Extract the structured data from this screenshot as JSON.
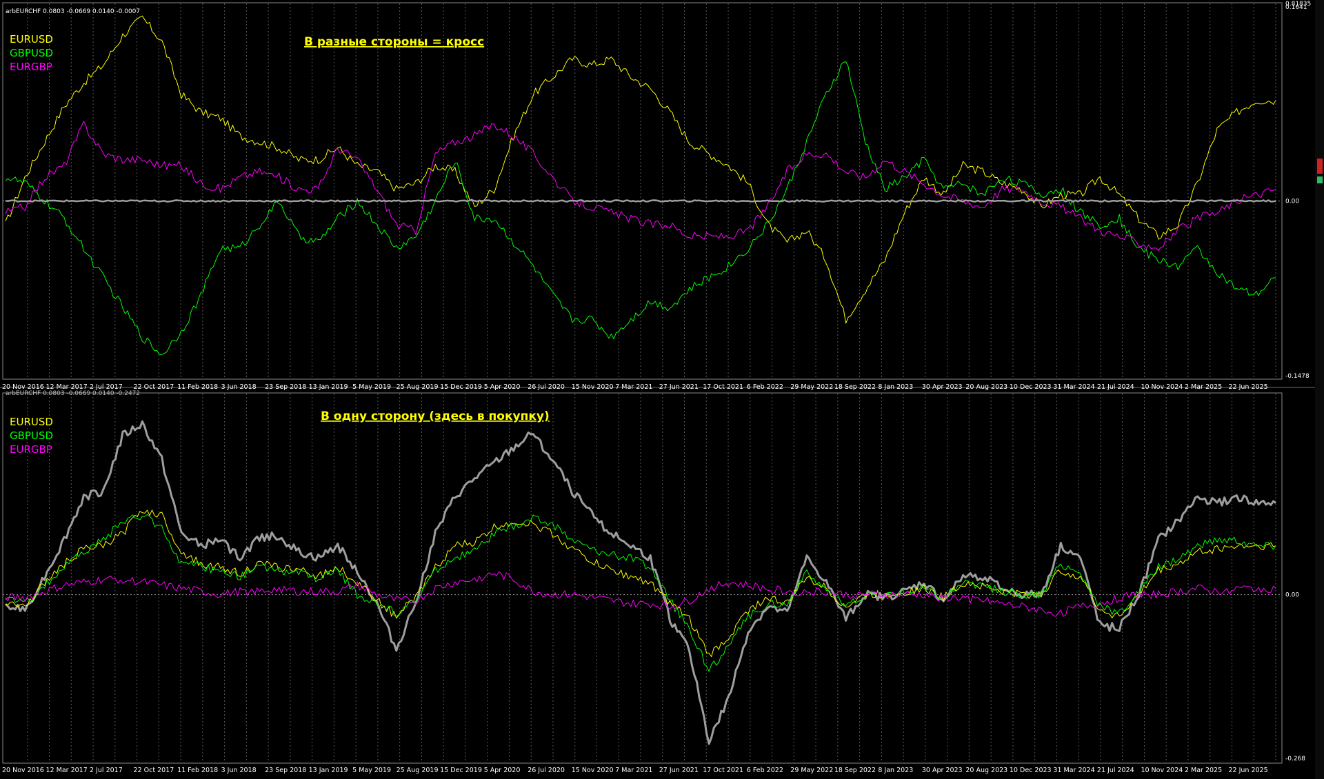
{
  "chart_data": [
    {
      "type": "line",
      "header": "arbEURCHF 0.0803 -0.0669 0.0140 -0.0007",
      "title": "В разные стороны = кросс",
      "ylim": [
        -0.1478,
        0.1641
      ],
      "y_top_label": "0.81835",
      "y_labels": [
        {
          "value": 0.1641,
          "text": "0.1641"
        },
        {
          "value": 0.0,
          "text": "0.00"
        },
        {
          "value": -0.1478,
          "text": "-0.1478"
        }
      ],
      "x_labels": [
        "20 Nov 2016",
        "12 Mar 2017",
        "2 Jul 2017",
        "22 Oct 2017",
        "11 Feb 2018",
        "3 Jun 2018",
        "23 Sep 2018",
        "13 Jan 2019",
        "5 May 2019",
        "25 Aug 2019",
        "15 Dec 2019",
        "5 Apr 2020",
        "26 Jul 2020",
        "15 Nov 2020",
        "7 Mar 2021",
        "27 Jun 2021",
        "17 Oct 2021",
        "6 Feb 2022",
        "29 May 2022",
        "18 Sep 2022",
        "8 Jan 2023",
        "30 Apr 2023",
        "20 Aug 2023",
        "10 Dec 2023",
        "31 Mar 2024",
        "21 Jul 2024",
        "10 Nov 2024",
        "2 Mar 2025",
        "22 Jun 2025"
      ],
      "legend": [
        {
          "name": "EURUSD",
          "color": "#ffff00"
        },
        {
          "name": "GBPUSD",
          "color": "#00ff00"
        },
        {
          "name": "EURGBP",
          "color": "#ff00ff"
        }
      ],
      "series": [
        {
          "name": "EURUSD",
          "color": "#ffff00",
          "width": 1,
          "values": [
            -0.02,
            0.02,
            0.05,
            0.08,
            0.1,
            0.115,
            0.14,
            0.155,
            0.135,
            0.09,
            0.075,
            0.07,
            0.055,
            0.05,
            0.045,
            0.035,
            0.035,
            0.045,
            0.03,
            0.025,
            0.01,
            0.015,
            0.03,
            0.025,
            -0.005,
            0.01,
            0.055,
            0.09,
            0.105,
            0.12,
            0.115,
            0.12,
            0.105,
            0.095,
            0.075,
            0.05,
            0.04,
            0.03,
            0.015,
            -0.02,
            -0.035,
            -0.025,
            -0.05,
            -0.1,
            -0.075,
            -0.05,
            -0.01,
            0.02,
            0.005,
            0.03,
            0.025,
            0.015,
            0.01,
            -0.005,
            0.005,
            0.005,
            0.02,
            0.005,
            -0.015,
            -0.03,
            -0.02,
            0.015,
            0.06,
            0.075,
            0.085,
            0.085
          ]
        },
        {
          "name": "GBPUSD",
          "color": "#00ff00",
          "width": 1,
          "values": [
            0.02,
            0.015,
            0.0,
            -0.015,
            -0.04,
            -0.065,
            -0.09,
            -0.115,
            -0.13,
            -0.11,
            -0.08,
            -0.04,
            -0.04,
            -0.02,
            0.0,
            -0.03,
            -0.035,
            -0.015,
            0.0,
            -0.02,
            -0.04,
            -0.03,
            0.0,
            0.035,
            -0.015,
            -0.015,
            -0.035,
            -0.055,
            -0.08,
            -0.1,
            -0.1,
            -0.115,
            -0.1,
            -0.085,
            -0.09,
            -0.075,
            -0.065,
            -0.055,
            -0.04,
            -0.02,
            0.01,
            0.05,
            0.09,
            0.12,
            0.05,
            0.01,
            0.02,
            0.035,
            0.01,
            0.015,
            0.005,
            0.02,
            0.015,
            0.005,
            0.01,
            -0.01,
            -0.02,
            -0.015,
            -0.04,
            -0.05,
            -0.055,
            -0.04,
            -0.06,
            -0.075,
            -0.08,
            -0.065
          ]
        },
        {
          "name": "EURGBP",
          "color": "#ff00ff",
          "width": 1,
          "values": [
            -0.01,
            -0.005,
            0.02,
            0.03,
            0.065,
            0.04,
            0.035,
            0.035,
            0.03,
            0.03,
            0.015,
            0.01,
            0.02,
            0.025,
            0.02,
            0.01,
            0.01,
            0.045,
            0.035,
            0.01,
            -0.02,
            -0.025,
            0.04,
            0.05,
            0.055,
            0.065,
            0.055,
            0.04,
            0.02,
            0.0,
            -0.005,
            -0.01,
            -0.015,
            -0.02,
            -0.02,
            -0.03,
            -0.03,
            -0.03,
            -0.025,
            -0.005,
            0.025,
            0.04,
            0.04,
            0.025,
            0.02,
            0.035,
            0.025,
            0.015,
            0.005,
            0.0,
            -0.005,
            0.01,
            0.01,
            0.0,
            -0.005,
            -0.015,
            -0.025,
            -0.03,
            -0.035,
            -0.04,
            -0.025,
            -0.015,
            -0.01,
            0.0,
            0.005,
            0.01
          ]
        },
        {
          "name": "",
          "color": "#9e9e9e",
          "width": 2.5,
          "values": [
            0.0,
            0.0,
            0.0,
            0.0,
            0.0,
            0.0,
            0.0,
            0.0,
            0.0,
            0.0,
            0.0,
            0.0,
            0.0,
            0.0,
            0.0,
            0.0,
            0.0,
            0.0,
            0.0,
            0.0,
            0.0,
            0.0,
            0.0,
            0.0,
            0.0,
            0.0,
            0.0,
            0.0,
            0.0,
            0.0,
            0.0,
            0.0,
            0.0,
            0.0,
            0.0,
            0.0,
            0.0,
            0.0,
            0.0,
            0.0,
            0.0,
            0.0,
            0.0,
            0.0,
            0.0,
            0.0,
            0.0,
            0.0,
            0.0,
            0.0,
            0.0,
            0.0,
            0.0,
            0.0,
            0.0,
            0.0,
            0.0,
            0.0,
            0.0,
            0.0,
            0.0,
            0.0,
            0.0,
            0.0,
            0.0,
            0.0
          ]
        }
      ]
    },
    {
      "type": "line",
      "header": "arbEURCHF 0.0803 -0.0669 0.0140 -0.2472",
      "title": "В одну сторону (здесь в покупку)",
      "ylim": [
        -0.268,
        0.31
      ],
      "y_labels": [
        {
          "value": 0.0,
          "text": "0.00"
        },
        {
          "value": -0.268,
          "text": "-0.268"
        }
      ],
      "x_labels": [
        "20 Nov 2016",
        "12 Mar 2017",
        "2 Jul 2017",
        "22 Oct 2017",
        "11 Feb 2018",
        "3 Jun 2018",
        "23 Sep 2018",
        "13 Jan 2019",
        "5 May 2019",
        "25 Aug 2019",
        "15 Dec 2019",
        "5 Apr 2020",
        "26 Jul 2020",
        "15 Nov 2020",
        "7 Mar 2021",
        "27 Jun 2021",
        "17 Oct 2021",
        "6 Feb 2022",
        "29 May 2022",
        "18 Sep 2022",
        "8 Jan 2023",
        "30 Apr 2023",
        "20 Aug 2023",
        "10 Dec 2023",
        "31 Mar 2024",
        "21 Jul 2024",
        "10 Nov 2024",
        "2 Mar 2025",
        "22 Jun 2025"
      ],
      "legend": [
        {
          "name": "EURUSD",
          "color": "#ffff00"
        },
        {
          "name": "GBPUSD",
          "color": "#00ff00"
        },
        {
          "name": "EURGBP",
          "color": "#ff00ff"
        }
      ],
      "series": [
        {
          "name": "",
          "color": "#9e9e9e",
          "width": 3,
          "values": [
            -0.02,
            -0.025,
            0.03,
            0.09,
            0.16,
            0.17,
            0.26,
            0.28,
            0.22,
            0.1,
            0.08,
            0.09,
            0.06,
            0.095,
            0.095,
            0.07,
            0.06,
            0.08,
            0.04,
            -0.015,
            -0.09,
            -0.01,
            0.1,
            0.16,
            0.19,
            0.215,
            0.24,
            0.265,
            0.22,
            0.17,
            0.13,
            0.1,
            0.08,
            0.06,
            -0.04,
            -0.09,
            -0.24,
            -0.17,
            -0.06,
            -0.02,
            -0.03,
            0.06,
            0.02,
            -0.04,
            0.0,
            -0.005,
            0.005,
            0.02,
            -0.01,
            0.03,
            0.03,
            0.01,
            0.0,
            0.0,
            0.08,
            0.06,
            -0.05,
            -0.055,
            0.0,
            0.09,
            0.12,
            0.16,
            0.15,
            0.16,
            0.15,
            0.15
          ]
        },
        {
          "name": "EURUSD",
          "color": "#ffff00",
          "width": 1,
          "values": [
            -0.01,
            -0.02,
            0.02,
            0.05,
            0.075,
            0.08,
            0.1,
            0.14,
            0.13,
            0.07,
            0.05,
            0.045,
            0.035,
            0.05,
            0.045,
            0.04,
            0.03,
            0.045,
            0.02,
            -0.01,
            -0.035,
            -0.005,
            0.045,
            0.08,
            0.085,
            0.11,
            0.12,
            0.115,
            0.1,
            0.075,
            0.055,
            0.04,
            0.03,
            0.02,
            -0.015,
            -0.04,
            -0.1,
            -0.07,
            -0.025,
            -0.005,
            -0.015,
            0.03,
            0.01,
            -0.02,
            0.0,
            0.0,
            0.005,
            0.01,
            -0.005,
            0.02,
            0.015,
            0.005,
            0.0,
            0.0,
            0.04,
            0.03,
            -0.025,
            -0.035,
            0.0,
            0.04,
            0.05,
            0.07,
            0.075,
            0.08,
            0.08,
            0.08
          ]
        },
        {
          "name": "GBPUSD",
          "color": "#00ff00",
          "width": 1,
          "values": [
            -0.005,
            -0.015,
            0.015,
            0.045,
            0.07,
            0.09,
            0.12,
            0.13,
            0.11,
            0.05,
            0.045,
            0.04,
            0.03,
            0.045,
            0.04,
            0.035,
            0.025,
            0.04,
            0.0,
            -0.015,
            -0.03,
            -0.01,
            0.04,
            0.06,
            0.07,
            0.1,
            0.11,
            0.125,
            0.115,
            0.09,
            0.075,
            0.065,
            0.06,
            0.045,
            -0.01,
            -0.055,
            -0.125,
            -0.085,
            -0.035,
            -0.015,
            -0.015,
            0.035,
            0.01,
            -0.02,
            0.0,
            0.0,
            0.005,
            0.01,
            -0.005,
            0.02,
            0.015,
            0.005,
            0.0,
            0.0,
            0.05,
            0.035,
            -0.02,
            -0.03,
            0.005,
            0.045,
            0.06,
            0.08,
            0.09,
            0.09,
            0.08,
            0.08
          ]
        },
        {
          "name": "EURGBP",
          "color": "#ff00ff",
          "width": 1,
          "values": [
            -0.005,
            -0.005,
            0.005,
            0.015,
            0.02,
            0.025,
            0.025,
            0.02,
            0.015,
            0.01,
            0.005,
            0.0,
            0.005,
            0.005,
            0.01,
            0.005,
            0.005,
            0.005,
            0.015,
            0.0,
            -0.01,
            -0.01,
            0.01,
            0.02,
            0.025,
            0.035,
            0.025,
            0.005,
            0.0,
            0.0,
            -0.005,
            -0.01,
            -0.015,
            -0.015,
            -0.02,
            -0.01,
            0.01,
            0.02,
            0.015,
            0.01,
            0.005,
            0.005,
            0.005,
            0.0,
            0.0,
            0.0,
            0.0,
            0.0,
            -0.005,
            -0.005,
            -0.01,
            -0.015,
            -0.02,
            -0.025,
            -0.03,
            -0.02,
            -0.015,
            -0.005,
            0.0,
            0.0,
            0.005,
            0.01,
            0.005,
            0.01,
            0.01,
            0.01
          ]
        }
      ]
    }
  ]
}
